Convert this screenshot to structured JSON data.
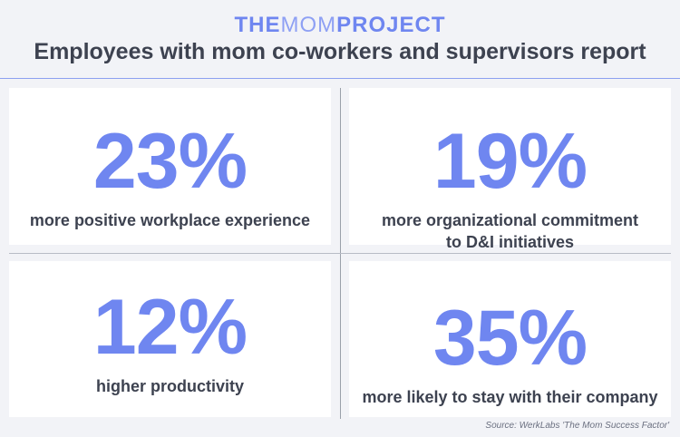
{
  "logo": {
    "part1": "THE",
    "part2": "MOM",
    "part3": "PROJECT"
  },
  "headline": "Employees with mom co-workers and supervisors report",
  "stats": [
    {
      "value": "23%",
      "lines": [
        "more positive workplace experience"
      ]
    },
    {
      "value": "19%",
      "lines": [
        "more organizational commitment",
        "to D&I initiatives"
      ]
    },
    {
      "value": "12%",
      "lines": [
        "higher productivity"
      ]
    },
    {
      "value": "35%",
      "lines": [
        "more likely to stay with their company"
      ]
    }
  ],
  "source": "Source: WerkLabs 'The Mom Success Factor'",
  "colors": {
    "accent": "#6f86f0",
    "text": "#3d4250",
    "background": "#f2f3f7"
  }
}
